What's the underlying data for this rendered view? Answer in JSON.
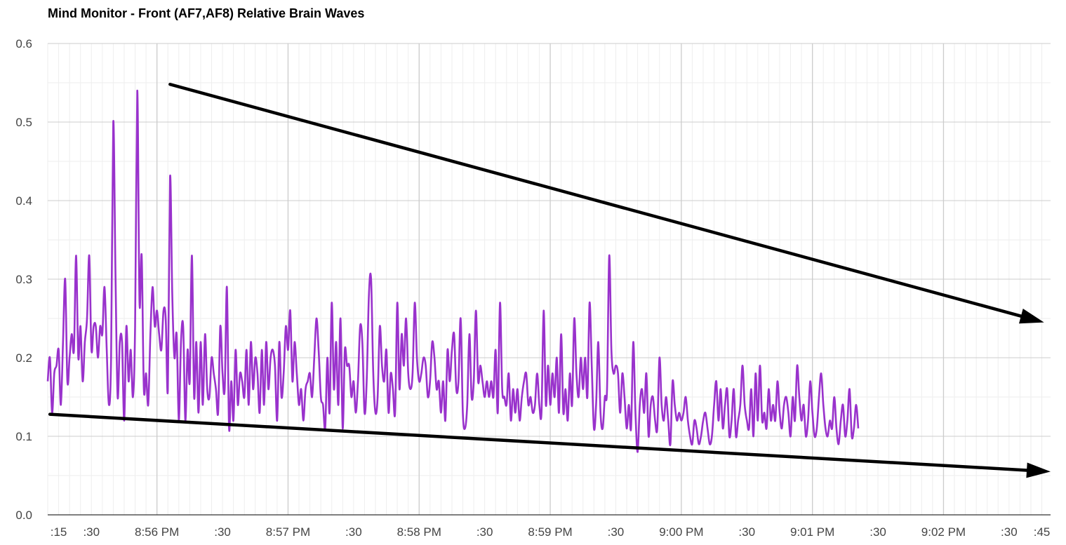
{
  "chart_data": {
    "type": "line",
    "title": "Mind Monitor - Front (AF7,AF8) Relative Brain Waves",
    "xlabel": "",
    "ylabel": "",
    "x_start": "8:55:10 PM",
    "x_end": "9:02:49 PM",
    "x_ticks": [
      {
        "label": ":15",
        "time": "8:55:15 PM"
      },
      {
        "label": ":30",
        "time": "8:55:30 PM"
      },
      {
        "label": "8:56 PM",
        "time": "8:56:00 PM"
      },
      {
        "label": ":30",
        "time": "8:56:30 PM"
      },
      {
        "label": "8:57 PM",
        "time": "8:57:00 PM"
      },
      {
        "label": ":30",
        "time": "8:57:30 PM"
      },
      {
        "label": "8:58 PM",
        "time": "8:58:00 PM"
      },
      {
        "label": ":30",
        "time": "8:58:30 PM"
      },
      {
        "label": "8:59 PM",
        "time": "8:59:00 PM"
      },
      {
        "label": ":30",
        "time": "8:59:30 PM"
      },
      {
        "label": "9:00 PM",
        "time": "9:00:00 PM"
      },
      {
        "label": ":30",
        "time": "9:00:30 PM"
      },
      {
        "label": "9:01 PM",
        "time": "9:01:00 PM"
      },
      {
        "label": ":30",
        "time": "9:01:30 PM"
      },
      {
        "label": "9:02 PM",
        "time": "9:02:00 PM"
      },
      {
        "label": ":30",
        "time": "9:02:30 PM"
      },
      {
        "label": ":45",
        "time": "9:02:45 PM"
      }
    ],
    "y_ticks": [
      "0.0",
      "0.1",
      "0.2",
      "0.3",
      "0.4",
      "0.5",
      "0.6"
    ],
    "ylim": [
      0,
      0.6
    ],
    "grid": true,
    "series": [
      {
        "color": "#9932CC",
        "x_start_seconds_after_855pm": 10,
        "sample_interval_seconds": 1,
        "values": [
          0.17,
          0.2,
          0.13,
          0.18,
          0.19,
          0.21,
          0.14,
          0.22,
          0.3,
          0.17,
          0.2,
          0.23,
          0.21,
          0.33,
          0.2,
          0.24,
          0.17,
          0.22,
          0.25,
          0.33,
          0.21,
          0.24,
          0.24,
          0.2,
          0.24,
          0.23,
          0.29,
          0.21,
          0.14,
          0.2,
          0.5,
          0.31,
          0.15,
          0.22,
          0.22,
          0.12,
          0.24,
          0.17,
          0.21,
          0.15,
          0.24,
          0.54,
          0.27,
          0.33,
          0.16,
          0.18,
          0.14,
          0.23,
          0.29,
          0.24,
          0.26,
          0.23,
          0.21,
          0.26,
          0.25,
          0.16,
          0.43,
          0.28,
          0.2,
          0.23,
          0.12,
          0.22,
          0.24,
          0.12,
          0.21,
          0.17,
          0.33,
          0.15,
          0.22,
          0.13,
          0.22,
          0.14,
          0.23,
          0.16,
          0.15,
          0.2,
          0.18,
          0.16,
          0.13,
          0.24,
          0.18,
          0.16,
          0.29,
          0.11,
          0.17,
          0.12,
          0.21,
          0.14,
          0.18,
          0.17,
          0.15,
          0.21,
          0.14,
          0.22,
          0.16,
          0.2,
          0.18,
          0.13,
          0.21,
          0.14,
          0.22,
          0.16,
          0.2,
          0.21,
          0.19,
          0.12,
          0.22,
          0.15,
          0.18,
          0.24,
          0.21,
          0.26,
          0.17,
          0.22,
          0.18,
          0.14,
          0.16,
          0.12,
          0.16,
          0.17,
          0.18,
          0.15,
          0.2,
          0.25,
          0.21,
          0.15,
          0.14,
          0.11,
          0.2,
          0.13,
          0.27,
          0.16,
          0.22,
          0.14,
          0.25,
          0.11,
          0.21,
          0.19,
          0.19,
          0.15,
          0.17,
          0.13,
          0.17,
          0.24,
          0.22,
          0.13,
          0.17,
          0.28,
          0.3,
          0.18,
          0.13,
          0.15,
          0.24,
          0.19,
          0.17,
          0.21,
          0.13,
          0.18,
          0.16,
          0.13,
          0.27,
          0.16,
          0.23,
          0.19,
          0.25,
          0.18,
          0.16,
          0.18,
          0.27,
          0.2,
          0.17,
          0.18,
          0.2,
          0.19,
          0.15,
          0.17,
          0.22,
          0.2,
          0.16,
          0.17,
          0.13,
          0.17,
          0.12,
          0.21,
          0.17,
          0.21,
          0.23,
          0.16,
          0.17,
          0.25,
          0.13,
          0.11,
          0.14,
          0.23,
          0.15,
          0.17,
          0.26,
          0.17,
          0.19,
          0.17,
          0.15,
          0.17,
          0.15,
          0.17,
          0.15,
          0.21,
          0.13,
          0.27,
          0.16,
          0.15,
          0.14,
          0.18,
          0.12,
          0.16,
          0.13,
          0.16,
          0.12,
          0.15,
          0.17,
          0.18,
          0.14,
          0.15,
          0.13,
          0.14,
          0.18,
          0.14,
          0.13,
          0.26,
          0.14,
          0.19,
          0.14,
          0.18,
          0.15,
          0.2,
          0.13,
          0.23,
          0.13,
          0.16,
          0.12,
          0.18,
          0.14,
          0.25,
          0.18,
          0.15,
          0.2,
          0.16,
          0.2,
          0.15,
          0.27,
          0.19,
          0.11,
          0.14,
          0.22,
          0.13,
          0.11,
          0.15,
          0.16,
          0.33,
          0.21,
          0.18,
          0.19,
          0.18,
          0.13,
          0.18,
          0.15,
          0.11,
          0.14,
          0.11,
          0.22,
          0.13,
          0.08,
          0.14,
          0.16,
          0.13,
          0.18,
          0.1,
          0.14,
          0.15,
          0.12,
          0.11,
          0.2,
          0.14,
          0.12,
          0.15,
          0.12,
          0.09,
          0.17,
          0.14,
          0.12,
          0.13,
          0.12,
          0.13,
          0.15,
          0.12,
          0.1,
          0.09,
          0.12,
          0.11,
          0.09,
          0.1,
          0.12,
          0.13,
          0.11,
          0.09,
          0.1,
          0.14,
          0.17,
          0.12,
          0.16,
          0.11,
          0.14,
          0.16,
          0.1,
          0.12,
          0.16,
          0.1,
          0.12,
          0.14,
          0.19,
          0.14,
          0.12,
          0.11,
          0.16,
          0.1,
          0.18,
          0.12,
          0.19,
          0.12,
          0.13,
          0.11,
          0.16,
          0.12,
          0.14,
          0.12,
          0.17,
          0.13,
          0.11,
          0.14,
          0.15,
          0.13,
          0.1,
          0.15,
          0.12,
          0.19,
          0.15,
          0.12,
          0.14,
          0.1,
          0.12,
          0.17,
          0.13,
          0.1,
          0.11,
          0.15,
          0.18,
          0.14,
          0.11,
          0.1,
          0.12,
          0.11,
          0.15,
          0.11,
          0.09,
          0.12,
          0.14,
          0.1,
          0.12,
          0.16,
          0.1,
          0.11,
          0.14,
          0.11
        ]
      }
    ],
    "annotations": [
      {
        "type": "arrow",
        "color": "#000000",
        "from": {
          "time": "8:56:06 PM",
          "value": 0.548
        },
        "to": {
          "time": "9:02:46 PM",
          "value": 0.245
        }
      },
      {
        "type": "arrow",
        "color": "#000000",
        "from": {
          "time": "8:55:11 PM",
          "value": 0.128
        },
        "to": {
          "time": "9:02:49 PM",
          "value": 0.055
        }
      }
    ]
  }
}
